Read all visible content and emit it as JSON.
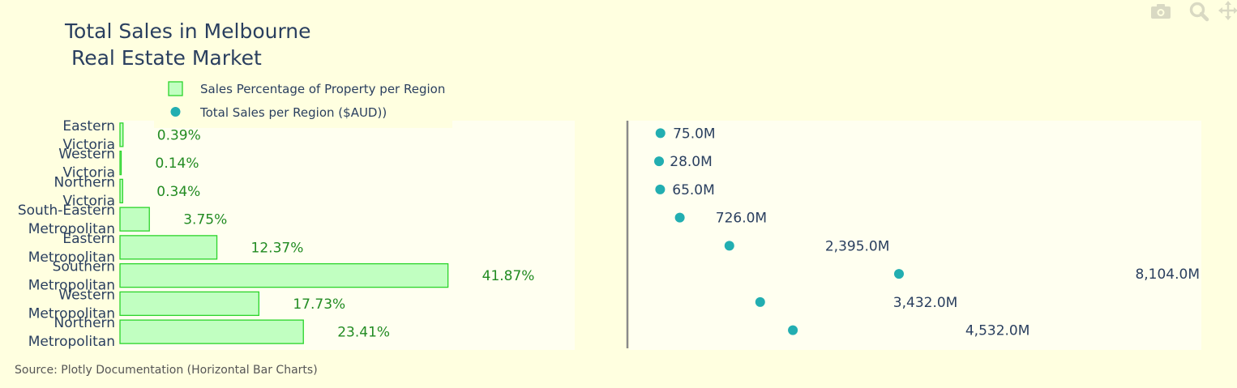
{
  "modebar": {
    "icons": [
      "camera-icon",
      "zoom-icon",
      "pan-icon"
    ]
  },
  "chart_data": {
    "type": "bar",
    "title": "Total Sales in Melbourne\n Real Estate Market",
    "categories": [
      "Eastern\nVictoria",
      "Western\nVictoria",
      "Northern\nVictoria",
      "South-Eastern\nMetropolitan",
      "Eastern\nMetropolitan",
      "Southern\nMetropolitan",
      "Western\nMetropolitan",
      "Northern\nMetropolitan"
    ],
    "series": [
      {
        "name": "Sales Percentage of Property per Region",
        "type": "bar",
        "orientation": "h",
        "values": [
          0.39,
          0.14,
          0.34,
          3.75,
          12.37,
          41.87,
          17.73,
          23.41
        ],
        "labels": [
          "0.39%",
          "0.14%",
          "0.34%",
          "3.75%",
          "12.37%",
          "41.87%",
          "17.73%",
          "23.41%"
        ],
        "fill_color": "#c1ffc1",
        "line_color": "#2bd42b",
        "label_color": "#228b22"
      },
      {
        "name": "Total Sales per Region ($AUD))",
        "type": "scatter",
        "values": [
          75.0,
          28.0,
          65.0,
          726.0,
          2395.0,
          8104.0,
          3432.0,
          4532.0
        ],
        "labels": [
          "75.0M",
          "28.0M",
          "65.0M",
          "726.0M",
          "2,395.0M",
          "8,104.0M",
          "3,432.0M",
          "4,532.0M"
        ],
        "marker_color": "#22aeb1",
        "label_color": "#2a3f5f"
      }
    ],
    "xlim_bar": [
      0,
      47.7
    ],
    "xlim_scatter": [
      0,
      8800
    ],
    "grid": false,
    "legend_position": "top-left",
    "plot_bg": "#fffff0",
    "paper_bg": "#ffffe0",
    "source": "Source: Plotly Documentation (Horizontal Bar Charts)"
  }
}
